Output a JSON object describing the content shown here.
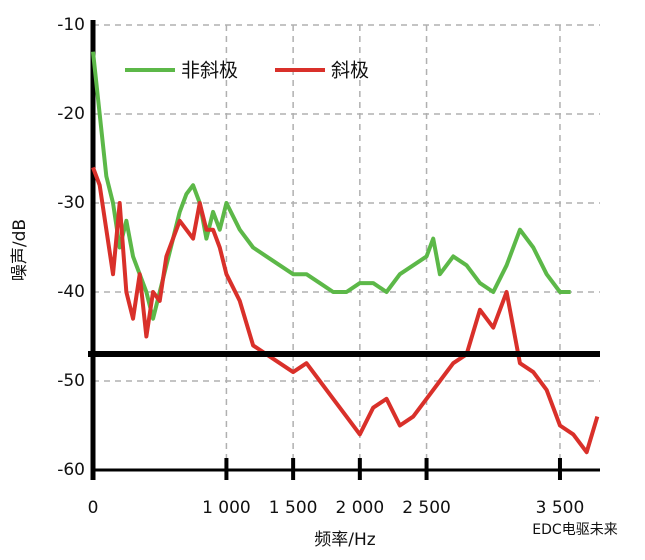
{
  "chart_data": {
    "type": "line",
    "x_label": "频率/Hz",
    "y_label": "噪声/dB",
    "watermark": "EDC电驱未来",
    "xlim": [
      0,
      3800
    ],
    "ylim": [
      -60,
      -10
    ],
    "xticks": [
      0,
      {
        "value": 1000,
        "label": "1 000"
      },
      {
        "value": 1500,
        "label": "1 500"
      },
      {
        "value": 2000,
        "label": "2 000"
      },
      {
        "value": 2500,
        "label": "2 500"
      },
      {
        "value": 3500,
        "label": "3 500"
      }
    ],
    "yticks": [
      -10,
      -20,
      -30,
      -40,
      -50,
      -60
    ],
    "grid": true,
    "legend": "top-left",
    "series": [
      {
        "name": "非斜极",
        "color": "#5cb848",
        "x": [
          0,
          50,
          100,
          150,
          200,
          250,
          300,
          350,
          400,
          450,
          500,
          550,
          600,
          650,
          700,
          750,
          800,
          850,
          900,
          950,
          1000,
          1100,
          1200,
          1300,
          1400,
          1500,
          1600,
          1700,
          1800,
          1900,
          2000,
          2100,
          2200,
          2300,
          2400,
          2500,
          2550,
          2600,
          2700,
          2800,
          2900,
          3000,
          3100,
          3200,
          3300,
          3400,
          3500,
          3580
        ],
        "values": [
          -13,
          -20,
          -27,
          -30,
          -35,
          -32,
          -36,
          -38,
          -40,
          -43,
          -40,
          -37,
          -34,
          -31,
          -29,
          -28,
          -30,
          -34,
          -31,
          -33,
          -30,
          -33,
          -35,
          -36,
          -37,
          -38,
          -38,
          -39,
          -40,
          -40,
          -39,
          -39,
          -40,
          -38,
          -37,
          -36,
          -34,
          -38,
          -36,
          -37,
          -39,
          -40,
          -37,
          -33,
          -35,
          -38,
          -40,
          -40
        ]
      },
      {
        "name": "斜极",
        "color": "#d9302a",
        "x": [
          0,
          50,
          100,
          150,
          200,
          250,
          300,
          350,
          400,
          450,
          500,
          550,
          600,
          650,
          700,
          750,
          800,
          850,
          900,
          950,
          1000,
          1100,
          1200,
          1300,
          1400,
          1500,
          1600,
          1700,
          1800,
          1900,
          2000,
          2100,
          2200,
          2300,
          2400,
          2500,
          2600,
          2700,
          2800,
          2900,
          3000,
          3100,
          3200,
          3300,
          3400,
          3500,
          3600,
          3700,
          3780
        ],
        "values": [
          -26,
          -28,
          -33,
          -38,
          -30,
          -40,
          -43,
          -38,
          -45,
          -40,
          -41,
          -36,
          -34,
          -32,
          -33,
          -34,
          -30,
          -33,
          -33,
          -35,
          -38,
          -41,
          -46,
          -47,
          -48,
          -49,
          -48,
          -50,
          -52,
          -54,
          -56,
          -53,
          -52,
          -55,
          -54,
          -52,
          -50,
          -48,
          -47,
          -42,
          -44,
          -40,
          -48,
          -49,
          -51,
          -55,
          -56,
          -58,
          -54
        ]
      }
    ]
  }
}
